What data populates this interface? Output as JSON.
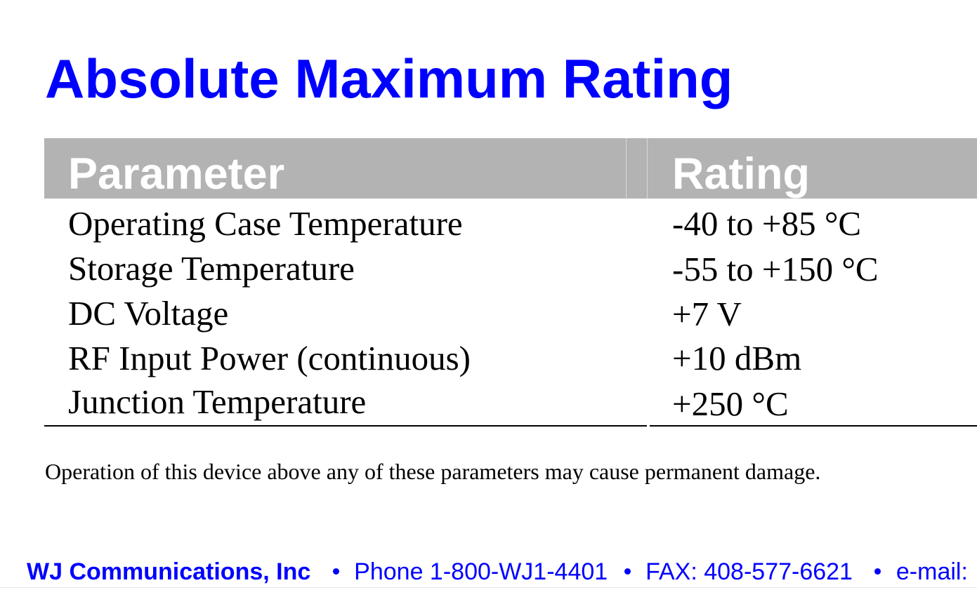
{
  "title": "Absolute Maximum Rating",
  "table": {
    "headers": [
      "Parameter",
      "Rating"
    ],
    "rows": [
      [
        "Operating Case Temperature",
        "-40 to +85 °C"
      ],
      [
        "Storage Temperature",
        "-55 to +150 °C"
      ],
      [
        "DC Voltage",
        "+7 V"
      ],
      [
        "RF Input Power (continuous)",
        "+10 dBm"
      ],
      [
        "Junction Temperature",
        "+250 °C"
      ]
    ]
  },
  "note": "Operation of this device above any of these parameters may cause permanent damage.",
  "footer": {
    "company": "WJ Communications, Inc",
    "phone": "Phone 1-800-WJ1-4401",
    "fax": "FAX: 408-577-6621",
    "email": "e-mail:"
  },
  "colors": {
    "title": "#0000ff",
    "header_background": "#b3b3b3",
    "header_text": "#ffffff",
    "footer_text": "#0000ff"
  }
}
